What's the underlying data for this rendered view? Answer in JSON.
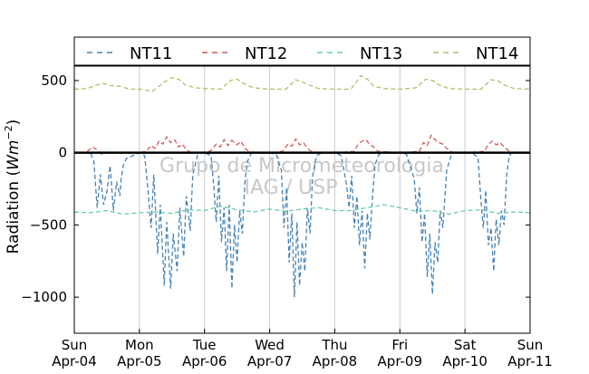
{
  "chart_data": {
    "type": "line",
    "ylabel": "Radiation (Wm^-2)",
    "ylim": [
      -1250,
      600
    ],
    "xlim": [
      0,
      7
    ],
    "yticks": [
      500,
      0,
      -500,
      -1000
    ],
    "xticks": [
      {
        "x": 0,
        "day": "Sun",
        "date": "Apr-04"
      },
      {
        "x": 1,
        "day": "Mon",
        "date": "Apr-05"
      },
      {
        "x": 2,
        "day": "Tue",
        "date": "Apr-06"
      },
      {
        "x": 3,
        "day": "Wed",
        "date": "Apr-07"
      },
      {
        "x": 4,
        "day": "Thu",
        "date": "Apr-08"
      },
      {
        "x": 5,
        "day": "Fri",
        "date": "Apr-09"
      },
      {
        "x": 6,
        "day": "Sat",
        "date": "Apr-10"
      },
      {
        "x": 7,
        "day": "Sun",
        "date": "Apr-11"
      }
    ],
    "grid_vertical": true,
    "legend_placement": "top, outside plot",
    "watermark": [
      "Grupo de Micrometeorologia",
      "IAG / USP"
    ],
    "series": [
      {
        "name": "NT11",
        "color": "#4682b4",
        "style": "dashed",
        "x": [
          0.25,
          0.3,
          0.35,
          0.4,
          0.45,
          0.5,
          0.55,
          0.6,
          0.65,
          0.7,
          0.72,
          0.75,
          0.8,
          0.85,
          0.9,
          0.95,
          1.0,
          1.08,
          1.12,
          1.18,
          1.22,
          1.28,
          1.32,
          1.38,
          1.42,
          1.48,
          1.52,
          1.58,
          1.62,
          1.68,
          1.72,
          1.78,
          1.82,
          1.86,
          1.9,
          2.0,
          2.1,
          2.14,
          2.18,
          2.22,
          2.26,
          2.3,
          2.34,
          2.38,
          2.42,
          2.46,
          2.5,
          2.54,
          2.58,
          2.62,
          2.66,
          2.72,
          2.8,
          2.9,
          3.0,
          3.1,
          3.18,
          3.22,
          3.26,
          3.3,
          3.34,
          3.38,
          3.42,
          3.46,
          3.5,
          3.54,
          3.58,
          3.62,
          3.66,
          3.72,
          3.8,
          3.9,
          4.0,
          4.1,
          4.18,
          4.22,
          4.26,
          4.3,
          4.34,
          4.38,
          4.42,
          4.46,
          4.5,
          4.54,
          4.58,
          4.62,
          4.68,
          4.75,
          4.8,
          4.9,
          5.0,
          5.1,
          5.22,
          5.26,
          5.3,
          5.34,
          5.38,
          5.42,
          5.46,
          5.5,
          5.54,
          5.58,
          5.62,
          5.66,
          5.72,
          5.8,
          5.9,
          6.0,
          6.1,
          6.2,
          6.24,
          6.28,
          6.32,
          6.36,
          6.4,
          6.44,
          6.48,
          6.52,
          6.56,
          6.6,
          6.64,
          6.68,
          6.72,
          6.8
        ],
        "y": [
          -5,
          -60,
          -380,
          -150,
          -360,
          -270,
          -90,
          -400,
          -200,
          -300,
          -180,
          -90,
          -40,
          -30,
          -20,
          -10,
          0,
          -20,
          -200,
          -520,
          -150,
          -700,
          -360,
          -920,
          -480,
          -940,
          -560,
          -820,
          -380,
          -720,
          -300,
          -540,
          -150,
          -80,
          0,
          0,
          -20,
          -220,
          -480,
          -160,
          -620,
          -380,
          -820,
          -360,
          -940,
          -500,
          -760,
          -400,
          -560,
          -200,
          -60,
          0,
          0,
          0,
          0,
          -10,
          -120,
          -520,
          -240,
          -760,
          -420,
          -1000,
          -480,
          -920,
          -620,
          -820,
          -380,
          -560,
          -160,
          -20,
          0,
          0,
          0,
          -20,
          -220,
          -380,
          -160,
          -520,
          -300,
          -640,
          -400,
          -800,
          -420,
          -600,
          -300,
          -80,
          -10,
          0,
          0,
          0,
          0,
          -10,
          -180,
          -420,
          -240,
          -620,
          -420,
          -860,
          -560,
          -980,
          -620,
          -760,
          -400,
          -520,
          -120,
          0,
          0,
          0,
          0,
          -30,
          -300,
          -520,
          -260,
          -640,
          -520,
          -820,
          -460,
          -640,
          -400,
          -500,
          -160,
          -20,
          0,
          0
        ]
      },
      {
        "name": "NT12",
        "color": "#cd5c5c",
        "style": "dashed",
        "x": [
          0.2,
          0.28,
          0.35,
          0.42,
          0.5,
          0.6,
          1.0,
          1.1,
          1.18,
          1.24,
          1.3,
          1.36,
          1.42,
          1.48,
          1.54,
          1.6,
          1.66,
          1.72,
          1.8,
          2.0,
          2.1,
          2.18,
          2.24,
          2.3,
          2.36,
          2.42,
          2.5,
          2.56,
          2.62,
          2.7,
          3.0,
          3.2,
          3.28,
          3.34,
          3.4,
          3.46,
          3.52,
          3.58,
          3.64,
          3.7,
          4.0,
          4.3,
          4.36,
          4.42,
          4.48,
          4.54,
          4.6,
          4.66,
          5.0,
          5.3,
          5.36,
          5.42,
          5.48,
          5.54,
          5.6,
          5.66,
          5.72,
          5.8,
          6.0,
          6.3,
          6.36,
          6.42,
          6.48,
          6.54,
          6.6,
          6.68,
          6.76
        ],
        "y": [
          10,
          40,
          20,
          -10,
          5,
          0,
          0,
          10,
          50,
          30,
          80,
          60,
          110,
          70,
          90,
          40,
          60,
          20,
          0,
          0,
          15,
          60,
          40,
          90,
          50,
          85,
          55,
          80,
          30,
          5,
          0,
          10,
          60,
          45,
          95,
          55,
          70,
          30,
          10,
          0,
          0,
          10,
          60,
          80,
          90,
          55,
          40,
          10,
          0,
          10,
          70,
          50,
          120,
          90,
          70,
          60,
          30,
          5,
          0,
          10,
          60,
          80,
          55,
          70,
          40,
          10,
          0
        ]
      },
      {
        "name": "NT13",
        "color": "#66cdaa",
        "style": "dashed",
        "x": [
          0,
          0.25,
          0.5,
          0.75,
          1.0,
          1.25,
          1.5,
          1.75,
          2.0,
          2.25,
          2.5,
          2.75,
          3.0,
          3.25,
          3.5,
          3.75,
          4.0,
          4.25,
          4.5,
          4.75,
          5.0,
          5.25,
          5.5,
          5.75,
          6.0,
          6.25,
          6.5,
          6.75,
          7.0
        ],
        "y": [
          -410,
          -415,
          -400,
          -425,
          -415,
          -410,
          -420,
          -395,
          -400,
          -370,
          -395,
          -410,
          -390,
          -405,
          -390,
          -380,
          -400,
          -400,
          -380,
          -360,
          -380,
          -405,
          -400,
          -425,
          -400,
          -395,
          -420,
          -410,
          -415
        ]
      },
      {
        "name": "NT14",
        "color": "#bdb76b",
        "style": "dashed",
        "x": [
          0,
          0.2,
          0.35,
          0.45,
          0.55,
          0.7,
          0.85,
          1.0,
          1.2,
          1.4,
          1.5,
          1.6,
          1.7,
          1.85,
          2.0,
          2.25,
          2.4,
          2.5,
          2.6,
          2.75,
          3.0,
          3.25,
          3.4,
          3.5,
          3.6,
          3.75,
          4.0,
          4.25,
          4.4,
          4.5,
          4.6,
          4.75,
          5.0,
          5.25,
          5.4,
          5.5,
          5.6,
          5.75,
          6.0,
          6.25,
          6.4,
          6.5,
          6.6,
          6.75,
          7.0
        ],
        "y": [
          440,
          445,
          470,
          480,
          465,
          460,
          440,
          440,
          425,
          495,
          520,
          510,
          470,
          450,
          445,
          440,
          500,
          510,
          480,
          450,
          440,
          440,
          505,
          490,
          470,
          445,
          440,
          440,
          535,
          510,
          460,
          445,
          440,
          450,
          510,
          500,
          470,
          445,
          440,
          440,
          505,
          500,
          470,
          445,
          440
        ]
      }
    ]
  }
}
